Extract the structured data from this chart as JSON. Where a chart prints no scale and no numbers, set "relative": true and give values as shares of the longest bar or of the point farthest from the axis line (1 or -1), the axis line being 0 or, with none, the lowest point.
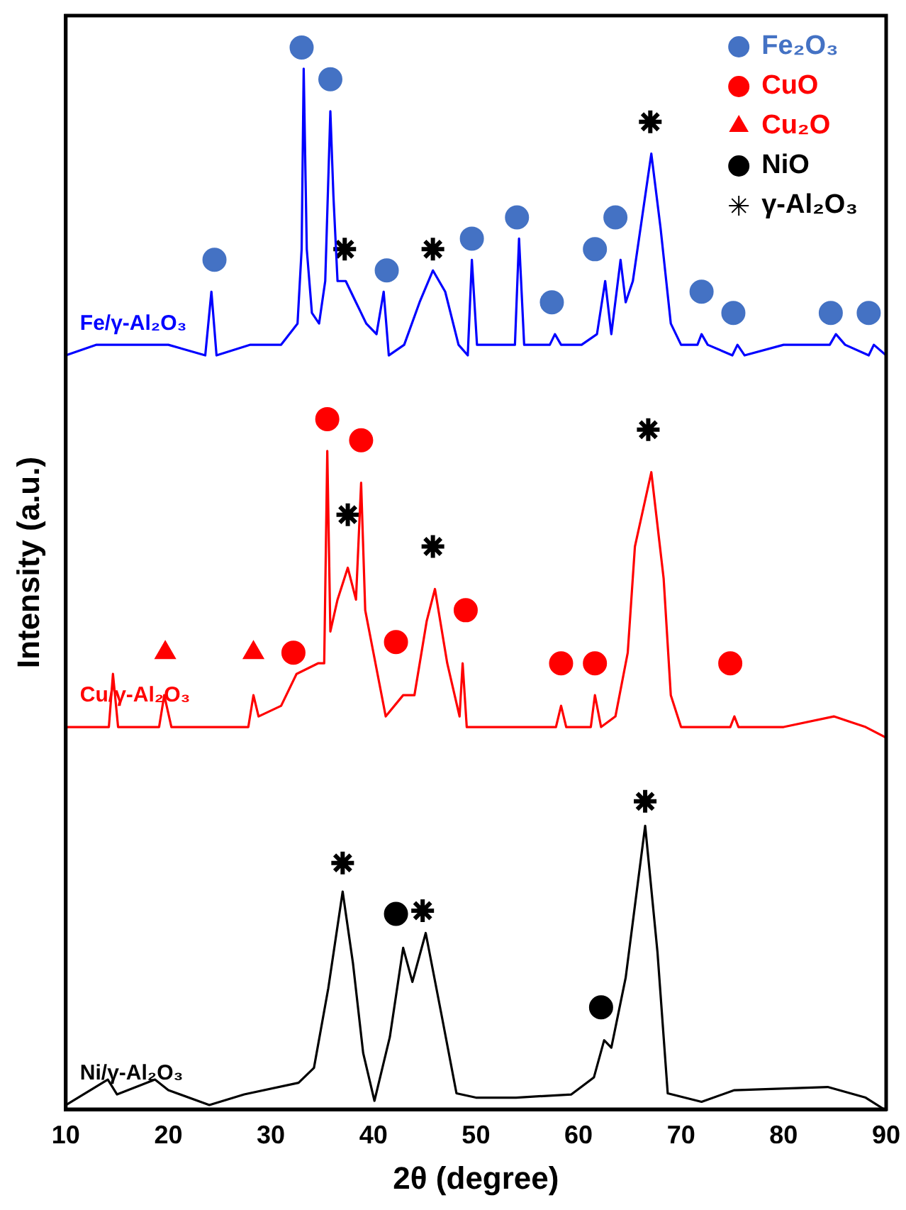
{
  "chart_data": {
    "type": "line",
    "relative": true,
    "xlabel": "2θ (degree)",
    "ylabel": "Intensity (a.u.)",
    "xlim": [
      10,
      90
    ],
    "xticks": [
      10,
      20,
      30,
      40,
      50,
      60,
      70,
      80,
      90
    ],
    "grid": false,
    "legend": "top right",
    "marker": "none",
    "line_style": "solid",
    "series": [
      {
        "name": "Fe/γ-Al₂O₃",
        "color": "#0000ff",
        "x": [
          10,
          13,
          16,
          20,
          23.6,
          24.2,
          24.7,
          28,
          31,
          32.6,
          33.0,
          33.2,
          33.5,
          34.0,
          34.7,
          35.3,
          35.8,
          36.1,
          36.5,
          37.3,
          38.3,
          39.3,
          40.3,
          41.0,
          41.5,
          43,
          44.5,
          45.8,
          47,
          48.3,
          49.2,
          49.6,
          50.1,
          52,
          53.8,
          54.2,
          54.7,
          57.2,
          57.7,
          58.3,
          60.3,
          61.8,
          62.6,
          63.2,
          64.1,
          64.6,
          65.3,
          66.2,
          67.1,
          68.0,
          69.0,
          70,
          71.6,
          72.0,
          72.6,
          75.0,
          75.5,
          76.2,
          80,
          84.5,
          85.1,
          86,
          88.3,
          88.8,
          90
        ],
        "values": [
          0.71,
          0.72,
          0.72,
          0.72,
          0.71,
          0.77,
          0.71,
          0.72,
          0.72,
          0.74,
          0.81,
          0.98,
          0.81,
          0.75,
          0.74,
          0.78,
          0.94,
          0.86,
          0.78,
          0.78,
          0.76,
          0.74,
          0.73,
          0.77,
          0.71,
          0.72,
          0.76,
          0.79,
          0.77,
          0.72,
          0.71,
          0.8,
          0.72,
          0.72,
          0.72,
          0.82,
          0.72,
          0.72,
          0.73,
          0.72,
          0.72,
          0.73,
          0.78,
          0.73,
          0.8,
          0.76,
          0.78,
          0.84,
          0.9,
          0.83,
          0.74,
          0.72,
          0.72,
          0.73,
          0.72,
          0.71,
          0.72,
          0.71,
          0.72,
          0.72,
          0.73,
          0.72,
          0.71,
          0.72,
          0.71
        ]
      },
      {
        "name": "Cu/γ-Al₂O₃",
        "color": "#ff0000",
        "x": [
          10,
          12,
          14.2,
          14.6,
          15.1,
          17,
          19.1,
          19.6,
          20.3,
          23,
          25,
          27.8,
          28.3,
          28.8,
          31,
          32.5,
          34.6,
          35.2,
          35.5,
          35.8,
          36.5,
          37.5,
          38.3,
          38.8,
          39.2,
          40,
          41.2,
          42.9,
          44,
          45.2,
          46.0,
          47.2,
          48.4,
          48.7,
          49.1,
          52,
          55,
          57.8,
          58.3,
          58.8,
          61.2,
          61.6,
          62.2,
          63.6,
          64.8,
          65.5,
          67.1,
          68.3,
          69.0,
          70,
          74.8,
          75.2,
          75.6,
          80,
          84.9,
          88,
          90
        ],
        "values": [
          0.36,
          0.36,
          0.36,
          0.41,
          0.36,
          0.36,
          0.36,
          0.39,
          0.36,
          0.36,
          0.36,
          0.36,
          0.39,
          0.37,
          0.38,
          0.41,
          0.42,
          0.42,
          0.62,
          0.45,
          0.48,
          0.51,
          0.48,
          0.59,
          0.47,
          0.43,
          0.37,
          0.39,
          0.39,
          0.46,
          0.49,
          0.42,
          0.37,
          0.42,
          0.36,
          0.36,
          0.36,
          0.36,
          0.38,
          0.36,
          0.36,
          0.39,
          0.36,
          0.37,
          0.43,
          0.53,
          0.6,
          0.5,
          0.39,
          0.36,
          0.36,
          0.37,
          0.36,
          0.36,
          0.37,
          0.36,
          0.35
        ]
      },
      {
        "name": "Ni/γ-Al₂O₃",
        "color": "#000000",
        "x": [
          10,
          14.1,
          15,
          18.7,
          20,
          24,
          27.4,
          32.7,
          34.2,
          35.6,
          37.0,
          38.0,
          39.0,
          40.1,
          41.6,
          42.9,
          43.8,
          45.1,
          46.7,
          48.1,
          50,
          53.9,
          59.3,
          61.5,
          62.5,
          63.2,
          64.6,
          66.5,
          67.7,
          68.7,
          72,
          75.2,
          84.3,
          88,
          89.8
        ],
        "values": [
          0.004,
          0.028,
          0.014,
          0.028,
          0.018,
          0.004,
          0.014,
          0.025,
          0.039,
          0.114,
          0.205,
          0.138,
          0.053,
          0.008,
          0.068,
          0.152,
          0.12,
          0.166,
          0.086,
          0.015,
          0.011,
          0.011,
          0.014,
          0.03,
          0.065,
          0.058,
          0.124,
          0.267,
          0.148,
          0.015,
          0.007,
          0.018,
          0.021,
          0.011,
          0
        ]
      },
      {
        "name": "Fe₂O₃",
        "type": "scatter",
        "marker": "circle",
        "color": "#4472c4",
        "x": [
          24.5,
          33.0,
          35.8,
          41.3,
          49.6,
          54.0,
          57.4,
          61.6,
          63.6,
          72.0,
          75.1,
          84.6,
          88.3
        ],
        "values": [
          0.8,
          1.0,
          0.97,
          0.79,
          0.82,
          0.84,
          0.76,
          0.81,
          0.84,
          0.77,
          0.75,
          0.75,
          0.75
        ]
      },
      {
        "name": "CuO",
        "type": "scatter",
        "marker": "circle",
        "color": "#ff0000",
        "x": [
          32.2,
          35.5,
          38.8,
          42.2,
          49.0,
          58.3,
          61.6,
          74.8
        ],
        "values": [
          0.43,
          0.65,
          0.63,
          0.44,
          0.47,
          0.42,
          0.42,
          0.42
        ]
      },
      {
        "name": "Cu₂O",
        "type": "scatter",
        "marker": "triangle",
        "color": "#ff0000",
        "x": [
          19.7,
          28.3
        ],
        "values": [
          0.43,
          0.43
        ]
      },
      {
        "name": "NiO",
        "type": "scatter",
        "marker": "circle",
        "color": "#000000",
        "x": [
          42.2,
          62.2
        ],
        "values": [
          0.184,
          0.096
        ]
      },
      {
        "name": "γ-Al₂O₃",
        "type": "scatter",
        "marker": "cross",
        "color": "#000000",
        "x": [
          37.2,
          45.8,
          67.0,
          37.5,
          45.8,
          66.8,
          37.0,
          44.8,
          66.5
        ],
        "values": [
          0.81,
          0.81,
          0.93,
          0.56,
          0.53,
          0.64,
          0.232,
          0.187,
          0.29
        ]
      }
    ]
  }
}
